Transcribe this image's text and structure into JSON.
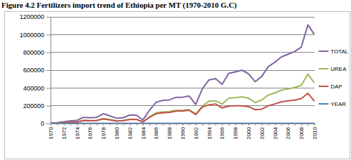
{
  "chart_data": {
    "type": "line",
    "title": "Figure 4.2 Fertilizers import trend of Ethiopia per MT (1970-2010 G.C)",
    "categories": [
      "1970",
      null,
      "1972",
      null,
      "1974",
      null,
      "1976",
      null,
      "1978",
      null,
      "1980",
      null,
      "1982",
      null,
      "1984",
      null,
      "1986",
      null,
      "1988",
      null,
      "1990",
      null,
      "1992",
      null,
      "1994",
      null,
      "1996",
      null,
      "1998",
      null,
      "2000",
      null,
      "2002",
      null,
      "2004",
      null,
      "2006",
      null,
      "2008",
      null,
      "2010"
    ],
    "series": [
      {
        "name": "TOTAL",
        "color": "#8064a2",
        "values": [
          5000,
          10000,
          20000,
          30000,
          35000,
          70000,
          65000,
          70000,
          110000,
          85000,
          60000,
          65000,
          95000,
          95000,
          40000,
          150000,
          240000,
          260000,
          265000,
          295000,
          295000,
          310000,
          215000,
          390000,
          490000,
          505000,
          440000,
          565000,
          580000,
          600000,
          560000,
          470000,
          530000,
          640000,
          690000,
          750000,
          780000,
          810000,
          860000,
          1110000,
          1000000
        ]
      },
      {
        "name": "UREA",
        "color": "#9bbb59",
        "values": [
          2000,
          5000,
          10000,
          15000,
          17000,
          35000,
          33000,
          35000,
          55000,
          45000,
          30000,
          33000,
          48000,
          48000,
          20000,
          75000,
          120000,
          130000,
          135000,
          148000,
          150000,
          155000,
          110000,
          195000,
          250000,
          255000,
          220000,
          285000,
          290000,
          300000,
          285000,
          235000,
          265000,
          320000,
          345000,
          375000,
          390000,
          405000,
          430000,
          555000,
          455000
        ]
      },
      {
        "name": "DAP",
        "color": "#c0504d",
        "values": [
          1500,
          4000,
          9000,
          14000,
          16000,
          33000,
          31000,
          34000,
          52000,
          40000,
          28000,
          31000,
          45000,
          46000,
          18000,
          70000,
          110000,
          120000,
          125000,
          140000,
          140000,
          150000,
          100000,
          185000,
          210000,
          220000,
          175000,
          195000,
          200000,
          200000,
          190000,
          155000,
          160000,
          200000,
          220000,
          245000,
          255000,
          265000,
          280000,
          340000,
          250000
        ]
      },
      {
        "name": "YEAR",
        "color": "#4f81bd",
        "values": [
          1970,
          1971,
          1972,
          1973,
          1974,
          1975,
          1976,
          1977,
          1978,
          1979,
          1980,
          1981,
          1982,
          1983,
          1984,
          1985,
          1986,
          1987,
          1988,
          1989,
          1990,
          1991,
          1992,
          1993,
          1994,
          1995,
          1996,
          1997,
          1998,
          1999,
          2000,
          2001,
          2002,
          2003,
          2004,
          2005,
          2006,
          2007,
          2008,
          2009,
          2010
        ]
      }
    ],
    "ylim": [
      0,
      1200000
    ],
    "yticks": [
      0,
      200000,
      400000,
      600000,
      800000,
      1000000,
      1200000
    ],
    "grid": true,
    "legend": "right"
  }
}
